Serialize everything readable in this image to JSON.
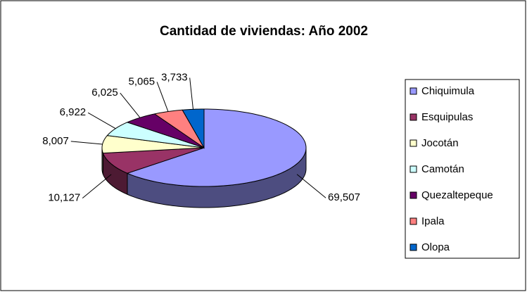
{
  "chart_data": {
    "type": "pie",
    "title": "Cantidad de viviendas: Año 2002",
    "categories": [
      "Chiquimula",
      "Esquipulas",
      "Jocotán",
      "Camotán",
      "Quezaltepeque",
      "Ipala",
      "Olopa"
    ],
    "values": [
      69507,
      10127,
      8007,
      6922,
      6025,
      5065,
      3733
    ],
    "value_labels": [
      "69,507",
      "10,127",
      "8,007",
      "6,922",
      "6,025",
      "5,065",
      "3,733"
    ],
    "colors": [
      "#9999ff",
      "#993366",
      "#ffffcc",
      "#ccffff",
      "#660066",
      "#ff8080",
      "#0066cc"
    ],
    "legend": "right"
  }
}
